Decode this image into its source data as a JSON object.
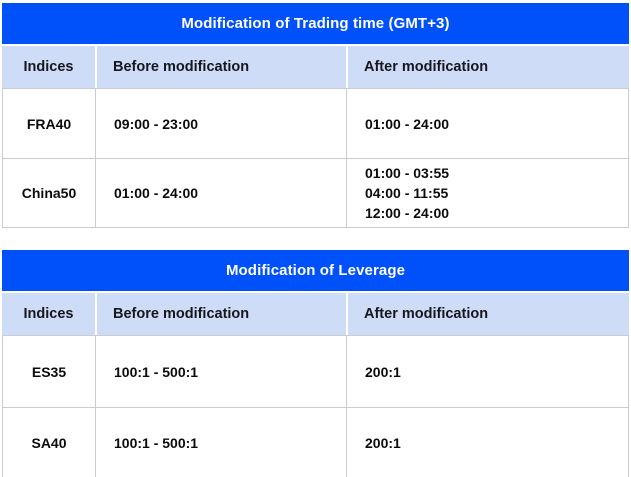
{
  "colors": {
    "title_bar_bg": "#0151fa",
    "title_text": "#ffffff",
    "header_bg": "#cedcf7",
    "header_text": "#17171e",
    "body_text": "#0b0b0b",
    "border": "#c9ccd3",
    "page_bg": "#ffffff"
  },
  "tables": [
    {
      "title": "Modification of Trading time (GMT+3)",
      "columns": [
        "Indices",
        "Before modification",
        "After modification"
      ],
      "rows": [
        {
          "index": "FRA40",
          "before": [
            "09:00 - 23:00"
          ],
          "after": [
            "01:00 - 24:00"
          ]
        },
        {
          "index": "China50",
          "before": [
            "01:00 - 24:00"
          ],
          "after": [
            "01:00 - 03:55",
            "04:00 - 11:55",
            "12:00 - 24:00"
          ]
        }
      ]
    },
    {
      "title": "Modification of Leverage",
      "columns": [
        "Indices",
        "Before modification",
        "After modification"
      ],
      "rows": [
        {
          "index": "ES35",
          "before": [
            "100:1 - 500:1"
          ],
          "after": [
            "200:1"
          ]
        },
        {
          "index": "SA40",
          "before": [
            "100:1 - 500:1"
          ],
          "after": [
            "200:1"
          ]
        }
      ]
    }
  ]
}
